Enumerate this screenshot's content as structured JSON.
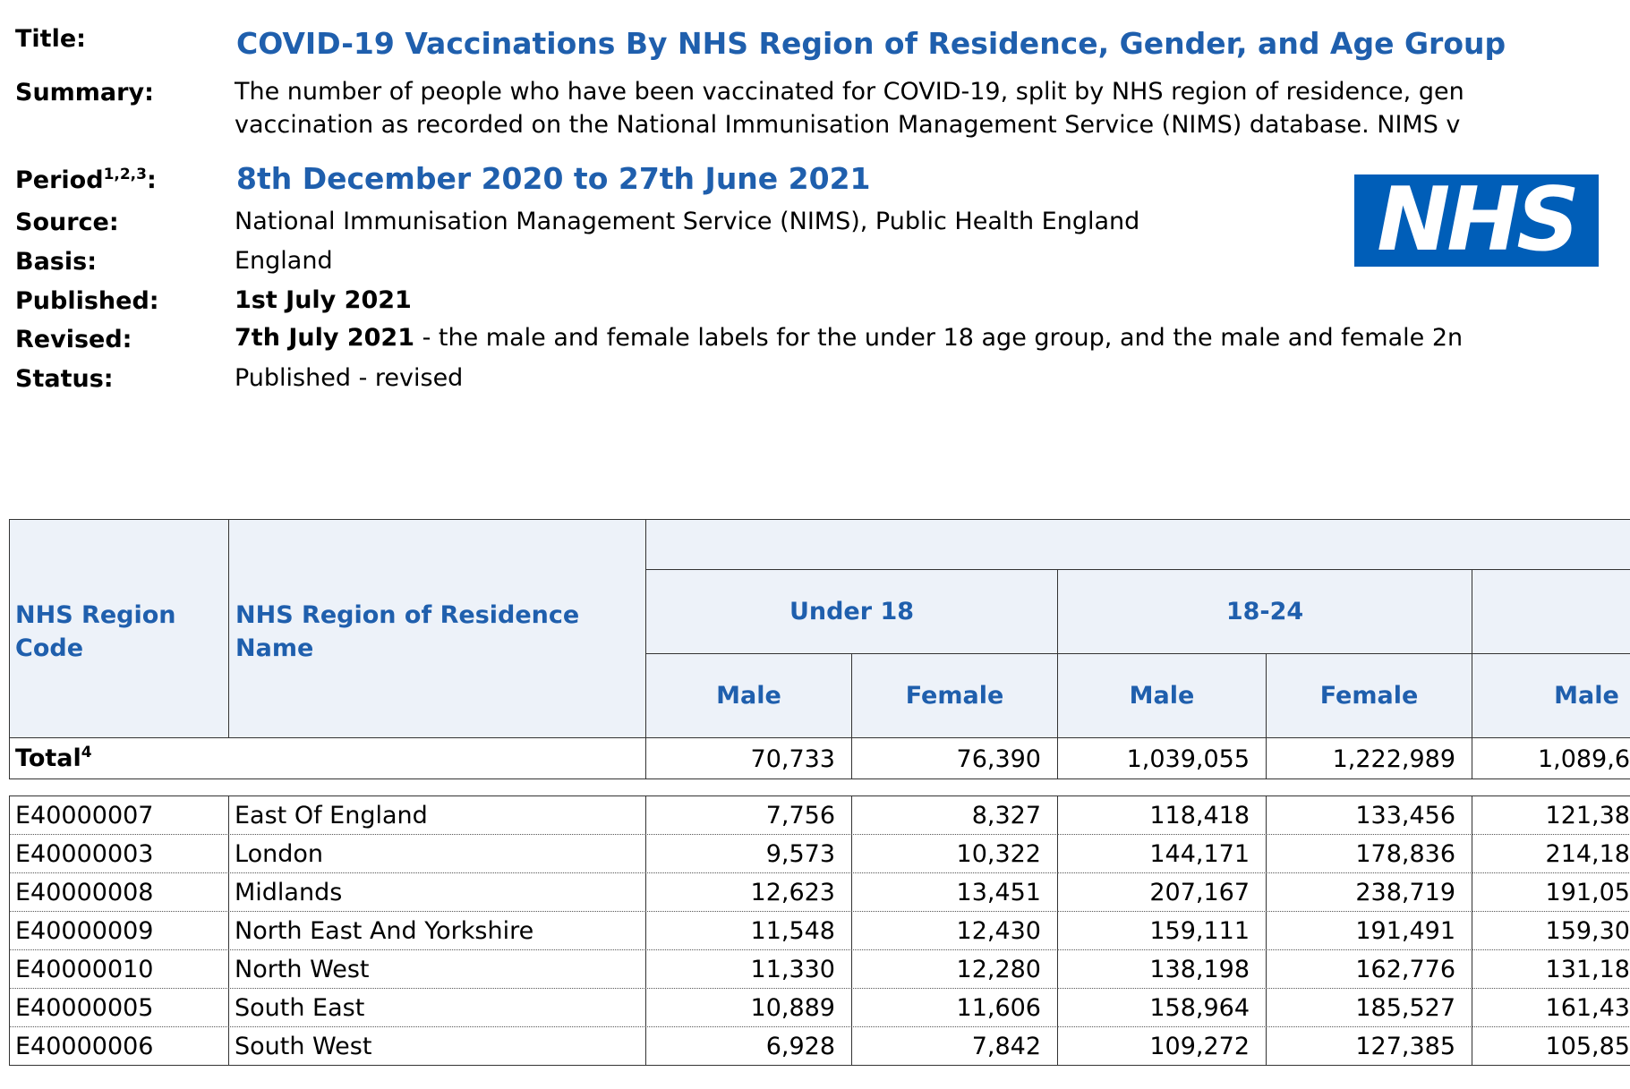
{
  "header": {
    "title_label": "Title:",
    "title": "COVID-19 Vaccinations By NHS Region of Residence, Gender, and Age Group",
    "summary_label": "Summary:",
    "summary_lines": [
      "The number of people who have been vaccinated for COVID-19, split by NHS region of residence, gen",
      "vaccination as recorded on the National Immunisation Management Service (NIMS) database. NIMS v"
    ],
    "period_label": "Period",
    "period_notes": "1,2,3",
    "period_colon": ":",
    "period": "8th December 2020 to 27th June 2021",
    "source_label": "Source:",
    "source": "National Immunisation Management Service (NIMS), Public Health England",
    "basis_label": "Basis:",
    "basis": "England",
    "published_label": "Published:",
    "published": "1st July 2021",
    "revised_label": "Revised:",
    "revised_date": "7th July 2021",
    "revised_note": " - the male and female labels for the under 18 age group, and the male and female 2n",
    "status_label": "Status:",
    "status": "Published - revised",
    "logo": "NHS"
  },
  "table": {
    "code_header": "NHS Region Code",
    "name_header": "NHS Region of Residence Name",
    "age_groups": [
      "Under 18",
      "18-24"
    ],
    "sex_headers": [
      "Male",
      "Female",
      "Male",
      "Female",
      "Male"
    ],
    "total_label": "Total",
    "total_note": "4",
    "total_values": [
      "70,733",
      "76,390",
      "1,039,055",
      "1,222,989",
      "1,089,6"
    ],
    "rows": [
      [
        "E40000007",
        "East Of England",
        "7,756",
        "8,327",
        "118,418",
        "133,456",
        "121,38"
      ],
      [
        "E40000003",
        "London",
        "9,573",
        "10,322",
        "144,171",
        "178,836",
        "214,18"
      ],
      [
        "E40000008",
        "Midlands",
        "12,623",
        "13,451",
        "207,167",
        "238,719",
        "191,05"
      ],
      [
        "E40000009",
        "North East And Yorkshire",
        "11,548",
        "12,430",
        "159,111",
        "191,491",
        "159,30"
      ],
      [
        "E40000010",
        "North West",
        "11,330",
        "12,280",
        "138,198",
        "162,776",
        "131,18"
      ],
      [
        "E40000005",
        "South East",
        "10,889",
        "11,606",
        "158,964",
        "185,527",
        "161,43"
      ],
      [
        "E40000006",
        "South West",
        "6,928",
        "7,842",
        "109,272",
        "127,385",
        "105,85"
      ]
    ]
  }
}
